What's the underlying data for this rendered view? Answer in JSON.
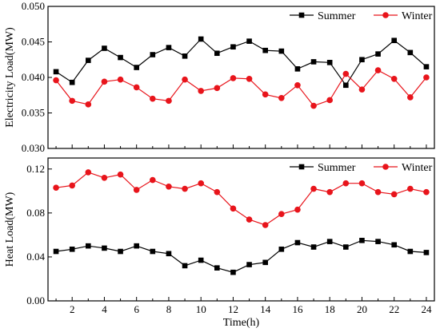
{
  "chart_data": [
    {
      "type": "line",
      "ylabel": "Electricity Load(MW)",
      "xlabel": "",
      "x": [
        1,
        2,
        3,
        4,
        5,
        6,
        7,
        8,
        9,
        10,
        11,
        12,
        13,
        14,
        15,
        16,
        17,
        18,
        19,
        20,
        21,
        22,
        23,
        24
      ],
      "ylim": [
        0.03,
        0.05
      ],
      "yticks": [
        0.03,
        0.035,
        0.04,
        0.045,
        0.05
      ],
      "ytick_labels": [
        "0.030",
        "0.035",
        "0.040",
        "0.045",
        "0.050"
      ],
      "xlim": [
        0.5,
        24.5
      ],
      "xticks": [
        2,
        4,
        6,
        8,
        10,
        12,
        14,
        16,
        18,
        20,
        22,
        24
      ],
      "legend_position": "top-right",
      "series": [
        {
          "name": "Summer",
          "marker": "square",
          "color": "#000000",
          "values": [
            0.0408,
            0.0393,
            0.0424,
            0.0441,
            0.0428,
            0.0414,
            0.0432,
            0.0442,
            0.043,
            0.0454,
            0.0434,
            0.0443,
            0.0451,
            0.0438,
            0.0437,
            0.0412,
            0.0422,
            0.0421,
            0.0389,
            0.0425,
            0.0433,
            0.0452,
            0.0435,
            0.0415
          ]
        },
        {
          "name": "Winter",
          "marker": "circle",
          "color": "#e8141b",
          "values": [
            0.0396,
            0.0367,
            0.0362,
            0.0394,
            0.0397,
            0.0386,
            0.037,
            0.0367,
            0.0397,
            0.0381,
            0.0385,
            0.0399,
            0.0398,
            0.0376,
            0.0371,
            0.0389,
            0.036,
            0.0368,
            0.0405,
            0.0383,
            0.041,
            0.0398,
            0.0372,
            0.04
          ]
        }
      ]
    },
    {
      "type": "line",
      "ylabel": "Heat Load(MW)",
      "xlabel": "Time(h)",
      "x": [
        1,
        2,
        3,
        4,
        5,
        6,
        7,
        8,
        9,
        10,
        11,
        12,
        13,
        14,
        15,
        16,
        17,
        18,
        19,
        20,
        21,
        22,
        23,
        24
      ],
      "ylim": [
        0.0,
        0.13
      ],
      "yticks": [
        0.0,
        0.04,
        0.08,
        0.12
      ],
      "ytick_labels": [
        "0.00",
        "0.04",
        "0.08",
        "0.12"
      ],
      "xlim": [
        0.5,
        24.5
      ],
      "xticks": [
        2,
        4,
        6,
        8,
        10,
        12,
        14,
        16,
        18,
        20,
        22,
        24
      ],
      "xtick_labels": [
        "2",
        "4",
        "6",
        "8",
        "10",
        "12",
        "14",
        "16",
        "18",
        "20",
        "22",
        "24"
      ],
      "legend_position": "top-right",
      "series": [
        {
          "name": "Summer",
          "marker": "square",
          "color": "#000000",
          "values": [
            0.045,
            0.047,
            0.05,
            0.048,
            0.045,
            0.05,
            0.045,
            0.043,
            0.032,
            0.037,
            0.03,
            0.026,
            0.033,
            0.035,
            0.047,
            0.053,
            0.049,
            0.054,
            0.049,
            0.055,
            0.054,
            0.051,
            0.045,
            0.044
          ]
        },
        {
          "name": "Winter",
          "marker": "circle",
          "color": "#e8141b",
          "values": [
            0.103,
            0.105,
            0.117,
            0.112,
            0.115,
            0.101,
            0.11,
            0.104,
            0.102,
            0.107,
            0.099,
            0.084,
            0.074,
            0.069,
            0.079,
            0.083,
            0.102,
            0.099,
            0.107,
            0.107,
            0.099,
            0.097,
            0.102,
            0.099
          ]
        }
      ]
    }
  ]
}
